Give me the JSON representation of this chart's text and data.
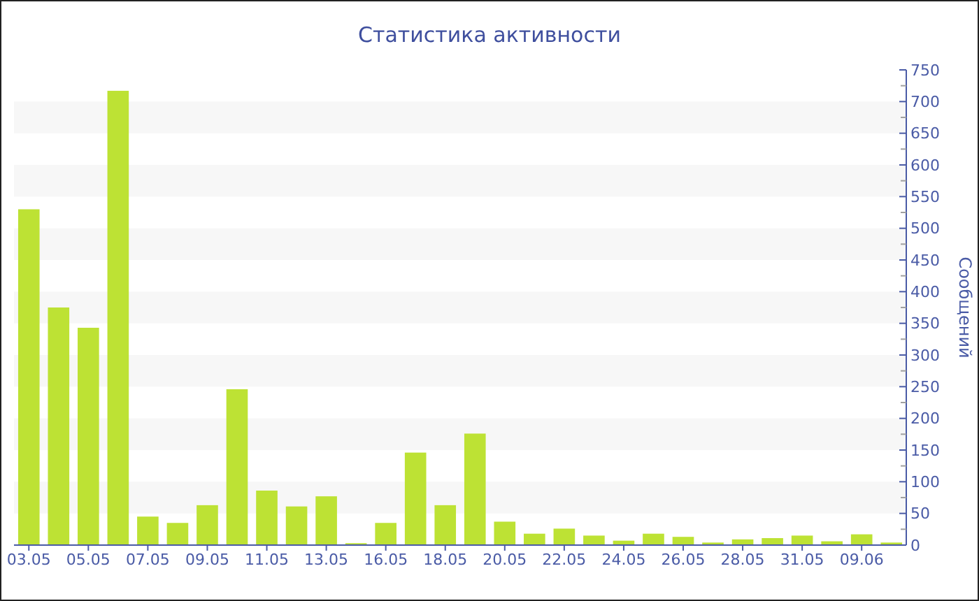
{
  "chart_data": {
    "type": "bar",
    "title": "Статистика активности",
    "ylabel": "Сообщений",
    "categories": [
      "03.05",
      null,
      "05.05",
      null,
      "07.05",
      null,
      "09.05",
      null,
      "11.05",
      null,
      "13.05",
      null,
      "16.05",
      null,
      "18.05",
      null,
      "20.05",
      null,
      "22.05",
      null,
      "24.05",
      null,
      "26.05",
      null,
      "28.05",
      null,
      "31.05",
      null,
      "09.06",
      null
    ],
    "values": [
      530,
      375,
      343,
      717,
      45,
      35,
      63,
      246,
      86,
      61,
      77,
      3,
      35,
      146,
      63,
      176,
      37,
      18,
      26,
      15,
      7,
      18,
      13,
      4,
      9,
      11,
      15,
      6,
      17,
      4
    ],
    "color": "#bde234",
    "ylim": [
      0,
      750
    ],
    "yticks": [
      0,
      {
        "value": 25,
        "label": null
      },
      50,
      {
        "value": 75,
        "label": null
      },
      100,
      {
        "value": 125,
        "label": null
      },
      150,
      {
        "value": 175,
        "label": null
      },
      200,
      {
        "value": 225,
        "label": null
      },
      250,
      {
        "value": 275,
        "label": null
      },
      300,
      {
        "value": 325,
        "label": null
      },
      350,
      {
        "value": 375,
        "label": null
      },
      400,
      {
        "value": 425,
        "label": null
      },
      450,
      {
        "value": 475,
        "label": null
      },
      500,
      {
        "value": 525,
        "label": null
      },
      550,
      {
        "value": 575,
        "label": null
      },
      600,
      {
        "value": 625,
        "label": null
      },
      650,
      {
        "value": 675,
        "label": null
      },
      700,
      {
        "value": 725,
        "label": null
      },
      750
    ],
    "bands": [
      {
        "axis": "y",
        "from": 50,
        "to": 100,
        "color": "#f7f7f7"
      },
      {
        "axis": "y",
        "from": 150,
        "to": 200,
        "color": "#f7f7f7"
      },
      {
        "axis": "y",
        "from": 250,
        "to": 300,
        "color": "#f7f7f7"
      },
      {
        "axis": "y",
        "from": 350,
        "to": 400,
        "color": "#f7f7f7"
      },
      {
        "axis": "y",
        "from": 450,
        "to": 500,
        "color": "#f7f7f7"
      },
      {
        "axis": "y",
        "from": 550,
        "to": 600,
        "color": "#f7f7f7"
      },
      {
        "axis": "y",
        "from": 650,
        "to": 700,
        "color": "#f7f7f7"
      }
    ]
  }
}
